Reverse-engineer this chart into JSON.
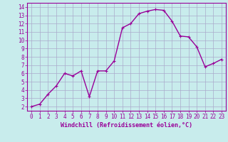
{
  "x": [
    0,
    1,
    2,
    3,
    4,
    5,
    6,
    7,
    8,
    9,
    10,
    11,
    12,
    13,
    14,
    15,
    16,
    17,
    18,
    19,
    20,
    21,
    22,
    23
  ],
  "y": [
    2.0,
    2.3,
    3.5,
    4.5,
    6.0,
    5.7,
    6.3,
    3.2,
    6.3,
    6.3,
    7.5,
    11.5,
    12.0,
    13.2,
    13.5,
    13.7,
    13.6,
    12.3,
    10.5,
    10.4,
    9.2,
    6.8,
    7.2,
    7.7
  ],
  "line_color": "#990099",
  "marker": "+",
  "marker_size": 3,
  "line_width": 1.0,
  "bg_color": "#c8ecec",
  "grid_color": "#aaaacc",
  "axis_color": "#990099",
  "tick_color": "#990099",
  "xlabel": "Windchill (Refroidissement éolien,°C)",
  "xlabel_fontsize": 6,
  "tick_fontsize": 5.5,
  "xlim": [
    -0.5,
    23.5
  ],
  "ylim": [
    1.5,
    14.5
  ],
  "yticks": [
    2,
    3,
    4,
    5,
    6,
    7,
    8,
    9,
    10,
    11,
    12,
    13,
    14
  ],
  "xticks": [
    0,
    1,
    2,
    3,
    4,
    5,
    6,
    7,
    8,
    9,
    10,
    11,
    12,
    13,
    14,
    15,
    16,
    17,
    18,
    19,
    20,
    21,
    22,
    23
  ]
}
